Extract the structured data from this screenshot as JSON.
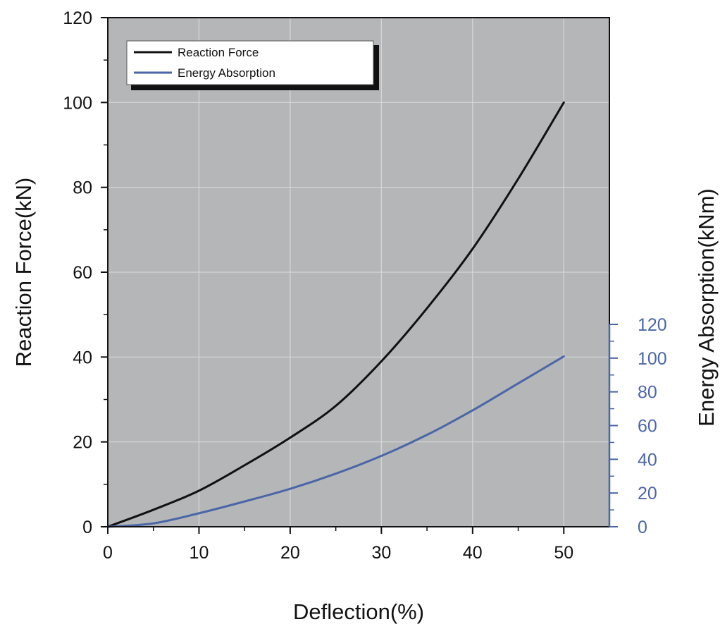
{
  "chart_data": {
    "type": "line",
    "xlabel": "Deflection(%)",
    "ylabel_left": "Reaction Force(kN)",
    "ylabel_right": "Energy Absorption(kNm)",
    "xlim": [
      0,
      55
    ],
    "ylim_left": [
      0,
      120
    ],
    "ylim_right": [
      0,
      120
    ],
    "x_ticks": [
      0,
      10,
      20,
      30,
      40,
      50
    ],
    "y_left_ticks": [
      0,
      20,
      40,
      60,
      80,
      100,
      120
    ],
    "y_right_ticks": [
      0,
      20,
      40,
      60,
      80,
      100,
      120
    ],
    "grid": true,
    "legend_position": "top-left",
    "colors": {
      "plot_background": "#b5b6b8",
      "grid": "#d6d7d9",
      "reaction_force": "#111111",
      "energy_absorption": "#4a66a8",
      "right_axis": "#4a66a8"
    },
    "series": [
      {
        "name": "Reaction Force",
        "axis": "left",
        "color": "#111111",
        "x": [
          0,
          5,
          10,
          15,
          20,
          25,
          30,
          35,
          40,
          45,
          50
        ],
        "values": [
          0,
          4,
          8.5,
          14.5,
          21,
          28.5,
          39,
          51.5,
          65.5,
          82,
          100
        ]
      },
      {
        "name": "Energy Absorption",
        "axis": "right",
        "color": "#4a66a8",
        "x": [
          0,
          5,
          10,
          15,
          20,
          25,
          30,
          35,
          40,
          45,
          50
        ],
        "values": [
          0,
          2,
          8,
          15,
          22.5,
          31.5,
          42,
          54.5,
          69,
          85,
          101
        ]
      }
    ]
  }
}
